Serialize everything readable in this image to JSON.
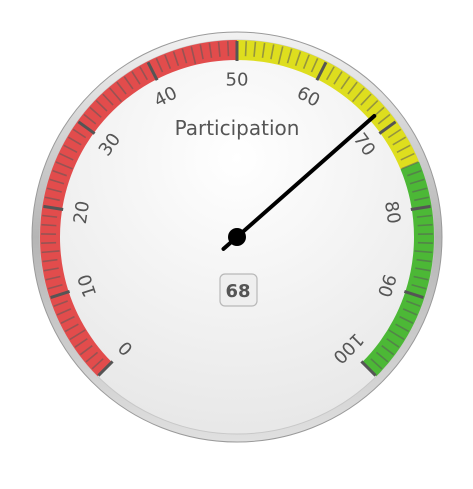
{
  "chart_data": {
    "type": "gauge",
    "title": "Participation",
    "value": 68,
    "value_label": "68",
    "min": 0,
    "max": 100,
    "tick_labels": [
      "0",
      "10",
      "20",
      "30",
      "40",
      "50",
      "60",
      "70",
      "80",
      "90",
      "100"
    ],
    "bands": [
      {
        "from": 0,
        "to": 50,
        "color": "#e24c4c"
      },
      {
        "from": 50,
        "to": 75,
        "color": "#dede1e"
      },
      {
        "from": 75,
        "to": 100,
        "color": "#4cb836"
      }
    ],
    "needle_color": "#000000"
  }
}
